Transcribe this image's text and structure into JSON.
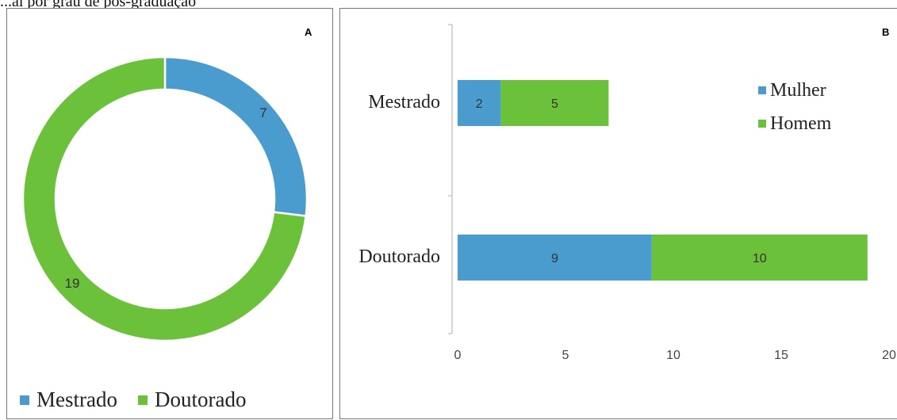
{
  "header_text": "...al por grau de pós-graduação",
  "panel_a": {
    "label": "A",
    "legend": [
      {
        "name": "Mestrado",
        "color": "#4a9ccf"
      },
      {
        "name": "Doutorado",
        "color": "#6cc13b"
      }
    ]
  },
  "panel_b": {
    "label": "B",
    "legend": [
      {
        "name": "Mulher",
        "color": "#4a9ccf"
      },
      {
        "name": "Homem",
        "color": "#6cc13b"
      }
    ]
  },
  "chart_data": [
    {
      "type": "pie",
      "donut": true,
      "categories": [
        "Mestrado",
        "Doutorado"
      ],
      "values": [
        7,
        19
      ],
      "colors": [
        "#4a9ccf",
        "#6cc13b"
      ],
      "data_labels": [
        "7",
        "19"
      ],
      "legend_position": "bottom"
    },
    {
      "type": "bar",
      "orientation": "horizontal",
      "stacked": true,
      "categories": [
        "Mestrado",
        "Doutorado"
      ],
      "series": [
        {
          "name": "Mulher",
          "values": [
            2,
            9
          ],
          "color": "#4a9ccf"
        },
        {
          "name": "Homem",
          "values": [
            5,
            10
          ],
          "color": "#6cc13b"
        }
      ],
      "xlim": [
        0,
        20
      ],
      "xticks": [
        "0",
        "5",
        "10",
        "15",
        "20"
      ],
      "grid": false,
      "legend_position": "top-right"
    }
  ]
}
